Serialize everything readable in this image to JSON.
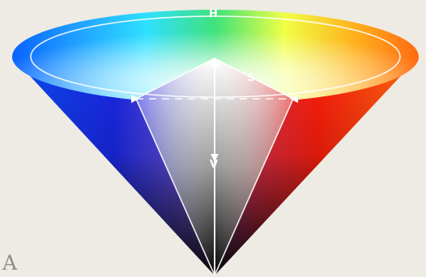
{
  "diagram": {
    "labels": {
      "hue": "H",
      "saturation": "S",
      "value": "V"
    },
    "panel_label": "A",
    "colors": {
      "background": "#eeebe4",
      "outline": "#ffffff",
      "panel_label": "#8c8c8c"
    }
  }
}
